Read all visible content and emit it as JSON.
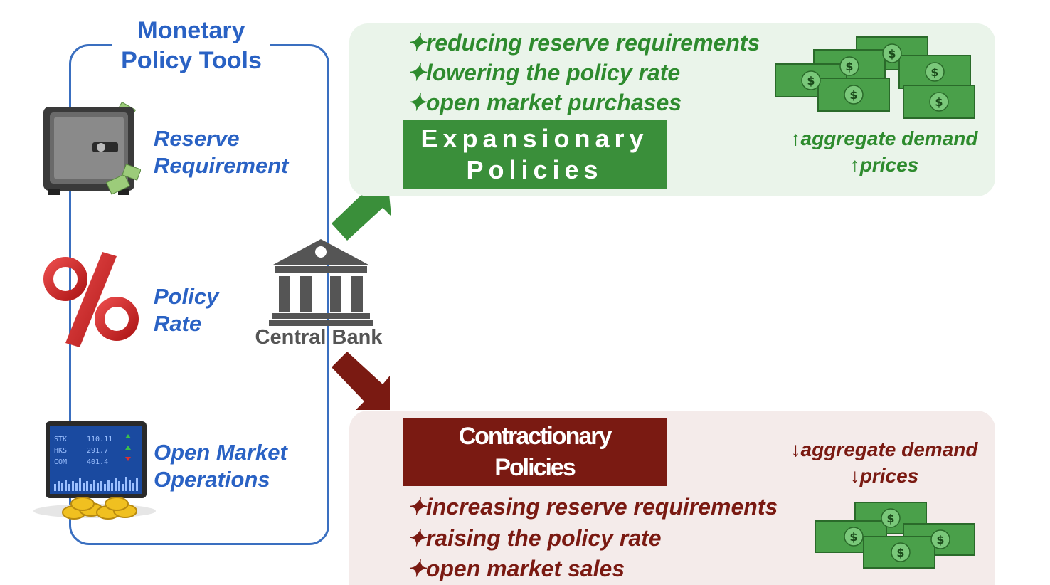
{
  "tools": {
    "title_line1": "Monetary",
    "title_line2": "Policy Tools",
    "reserve_line1": "Reserve",
    "reserve_line2": "Requirement",
    "policy_line1": "Policy",
    "policy_line2": "Rate",
    "omo_line1": "Open Market",
    "omo_line2": "Operations",
    "screen_rows": [
      "STK",
      "HKS",
      "COM"
    ],
    "screen_values": [
      "110.11",
      "291.7",
      "401.4"
    ]
  },
  "central_bank": {
    "label": "Central Bank"
  },
  "expansionary": {
    "bullets": [
      "✦reducing reserve requirements",
      "✦lowering the policy rate",
      "✦open market purchases"
    ],
    "title_line1": "Expansionary",
    "title_line2": "Policies",
    "effect_line1": "↑aggregate demand",
    "effect_line2": "↑prices",
    "color": "#3a8f3a"
  },
  "contractionary": {
    "bullets": [
      "✦increasing reserve requirements",
      "✦raising the policy rate",
      "✦open market sales"
    ],
    "title_line1": "Contractionary",
    "title_line2": "Policies",
    "effect_line1": "↓aggregate demand",
    "effect_line2": "↓prices",
    "color": "#7a1a12"
  },
  "icons": {
    "safe": "safe-icon",
    "percent": "percent-icon",
    "monitor": "stock-monitor-icon",
    "bank": "bank-icon",
    "money": "money-stack-icon"
  }
}
